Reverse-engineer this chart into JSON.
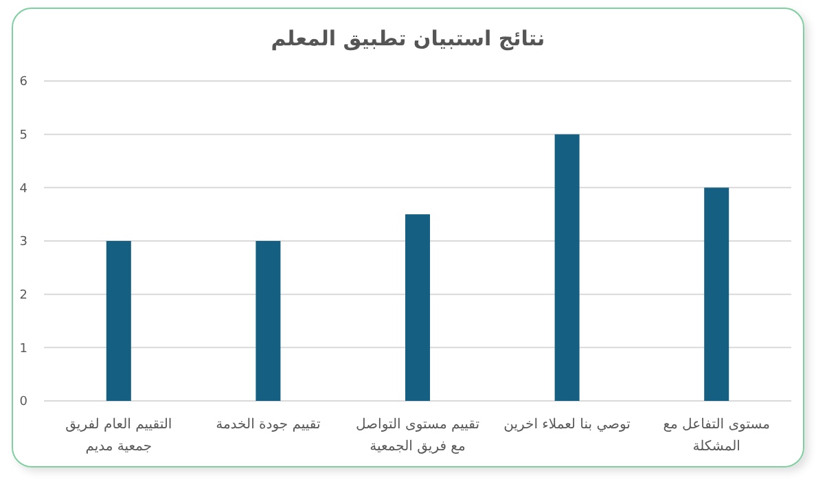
{
  "chart_data": {
    "type": "bar",
    "title": "نتائج استبيان تطبيق المعلم",
    "categories": [
      "التقييم العام لفريق جمعية مديم",
      "تقييم جودة الخدمة",
      "تقييم مستوى التواصل مع فريق الجمعية",
      "توصي بنا لعملاء اخرين",
      "مستوى التفاعل مع المشكلة"
    ],
    "values": [
      3,
      3,
      3.5,
      5,
      4
    ],
    "color": "#155f82",
    "ylim": [
      0,
      6
    ],
    "yticks": [
      0,
      1,
      2,
      3,
      4,
      5,
      6
    ],
    "grid": "y"
  }
}
